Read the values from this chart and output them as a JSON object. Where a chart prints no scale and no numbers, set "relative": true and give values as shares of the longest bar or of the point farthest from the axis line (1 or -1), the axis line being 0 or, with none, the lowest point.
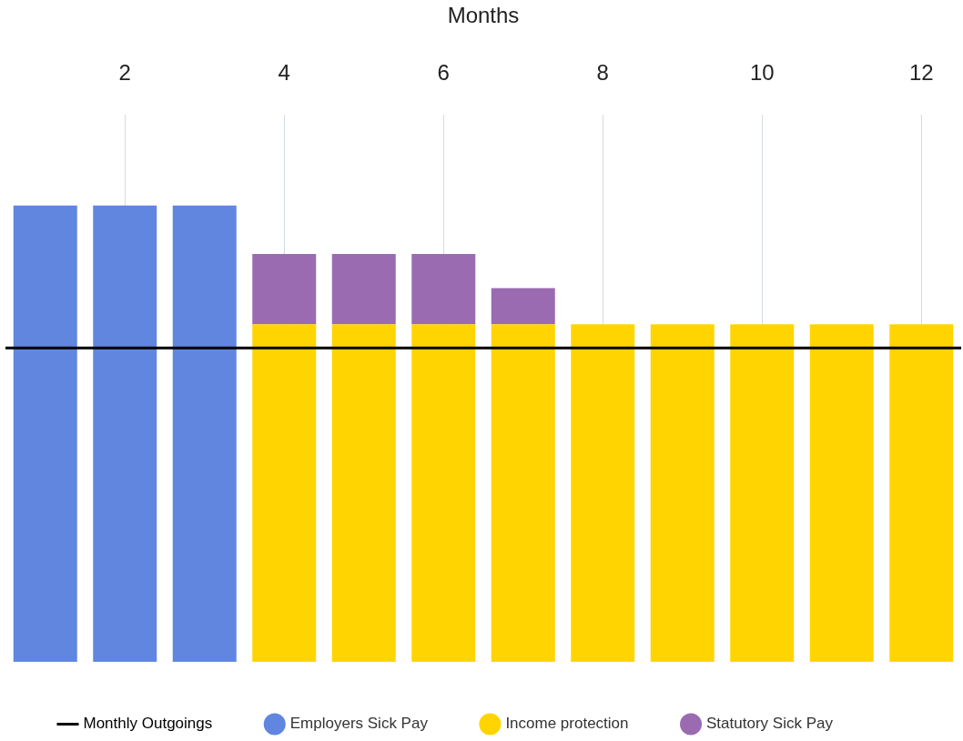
{
  "chart_data": {
    "type": "bar",
    "stacked": true,
    "relative": true,
    "xlabel": "Months",
    "categories": [
      null,
      "2",
      null,
      "4",
      null,
      "6",
      null,
      "8",
      null,
      "10",
      null,
      "12"
    ],
    "series": [
      {
        "name": "Employers Sick Pay",
        "color": "#6186e0",
        "values": [
          1,
          1,
          1,
          null,
          null,
          null,
          null,
          null,
          null,
          null,
          null,
          null
        ]
      },
      {
        "name": "Income protection",
        "color": "#ffd400",
        "values": [
          null,
          null,
          null,
          0.74,
          0.74,
          0.74,
          0.74,
          0.74,
          0.74,
          0.74,
          0.74,
          0.74
        ]
      },
      {
        "name": "Statutory Sick Pay",
        "color": "#9b6bb1",
        "values": [
          null,
          null,
          null,
          0.154,
          0.154,
          0.154,
          0.079,
          null,
          null,
          null,
          null,
          null
        ]
      }
    ],
    "ref_lines": [
      {
        "axis": "y",
        "value": 0.688,
        "label": "Monthly Outgoings",
        "color": "#000000"
      }
    ],
    "grid": "x",
    "legend": "bottom"
  }
}
